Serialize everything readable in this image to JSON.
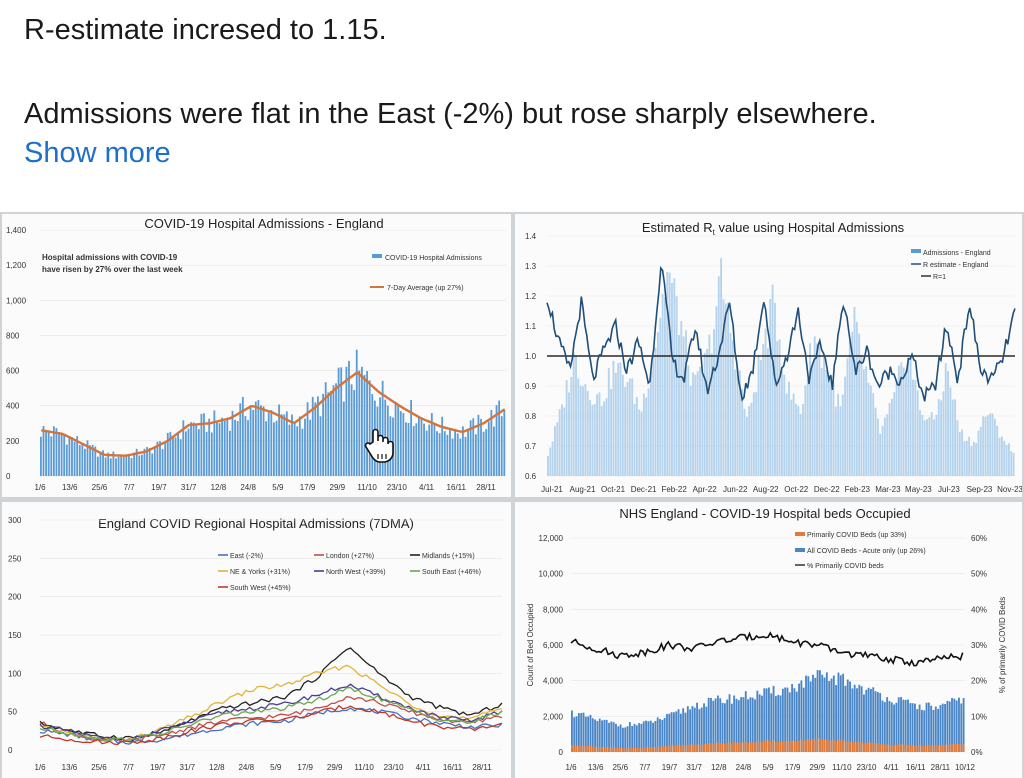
{
  "post": {
    "headline": "R-estimate incresed to 1.15.",
    "body": "Admissions were flat in the East (-2%) but rose sharply elsewhere.",
    "show_more": "Show more"
  },
  "colors": {
    "bars": "#5b9bd5",
    "avg_line": "#d4743a",
    "r_line": "#1f4e79",
    "r1_line": "#000000",
    "east": "#4472c4",
    "london": "#c0504d",
    "midlands": "#222222",
    "ne_yorks": "#e2b33c",
    "north_west": "#4b3d8f",
    "south_east": "#6aa84f",
    "south_west": "#c0392b",
    "primary_beds": "#e07b39",
    "all_beds": "#4a86c6",
    "pct_line": "#111111"
  },
  "chart_data": [
    {
      "type": "bar",
      "title": "COVID-19 Hospital Admissions - England",
      "annotation": [
        "Hospital admissions with COVID-19",
        "have risen by 27% over the last week"
      ],
      "legend": [
        "COVID-19 Hospital Admissions",
        "7-Day Average (up 27%)"
      ],
      "y_ticks": [
        "0",
        "200",
        "400",
        "600",
        "800",
        "1,000",
        "1,200",
        "1,400"
      ],
      "ylim": [
        0,
        1400
      ],
      "x_ticks": [
        "1/6",
        "13/6",
        "25/6",
        "7/7",
        "19/7",
        "31/7",
        "12/8",
        "24/8",
        "5/9",
        "17/9",
        "29/9",
        "11/10",
        "23/10",
        "4/11",
        "16/11",
        "28/11"
      ],
      "avg_knots": [
        260,
        240,
        180,
        120,
        115,
        140,
        200,
        290,
        300,
        330,
        400,
        360,
        300,
        390,
        500,
        590,
        480,
        400,
        330,
        280,
        250,
        300,
        380
      ],
      "grid": true
    },
    {
      "type": "line",
      "title": "Estimated R",
      "title_sub": "t",
      "title_suffix": " value using Hospital Admissions",
      "legend": [
        "Admissions - England",
        "R estimate - England",
        "R=1"
      ],
      "y_ticks": [
        "0.6",
        "0.7",
        "0.8",
        "0.9",
        "1.0",
        "1.1",
        "1.2",
        "1.3",
        "1.4"
      ],
      "ylim": [
        0.6,
        1.4
      ],
      "x_ticks": [
        "Jul-21",
        "Aug-21",
        "Oct-21",
        "Dec-21",
        "Feb-22",
        "Apr-22",
        "Jun-22",
        "Aug-22",
        "Oct-22",
        "Dec-22",
        "Feb-23",
        "Mar-23",
        "May-23",
        "Jul-23",
        "Sep-23",
        "Nov-23"
      ],
      "r_knots": [
        1.2,
        1.05,
        0.95,
        1.18,
        0.92,
        1.02,
        1.1,
        0.95,
        1.05,
        0.9,
        1.32,
        0.98,
        0.92,
        1.1,
        0.88,
        1.0,
        1.18,
        0.86,
        0.95,
        1.2,
        0.9,
        1.0,
        1.15,
        0.92,
        1.04,
        0.9,
        1.2,
        0.94,
        1.02,
        0.9,
        0.95,
        0.92,
        1.0,
        0.86,
        0.9,
        1.1,
        0.92,
        1.18,
        0.95,
        0.92,
        1.0,
        1.15
      ],
      "adm_knots": [
        0.1,
        0.3,
        0.55,
        0.4,
        0.35,
        0.5,
        0.45,
        0.3,
        0.6,
        0.95,
        0.7,
        0.4,
        0.55,
        0.9,
        0.6,
        0.25,
        0.55,
        0.8,
        0.4,
        0.3,
        0.65,
        0.5,
        0.3,
        0.7,
        0.45,
        0.2,
        0.35,
        0.6,
        0.3,
        0.25,
        0.5,
        0.2,
        0.15,
        0.3,
        0.2,
        0.1
      ],
      "ref": 1.0
    },
    {
      "type": "line",
      "title": "England COVID Regional Hospital Admissions (7DMA)",
      "y_ticks": [
        "0",
        "50",
        "100",
        "150",
        "200",
        "250",
        "300"
      ],
      "ylim": [
        0,
        300
      ],
      "x_ticks": [
        "1/6",
        "13/6",
        "25/6",
        "7/7",
        "19/7",
        "31/7",
        "12/8",
        "24/8",
        "5/9",
        "17/9",
        "29/9",
        "11/10",
        "23/10",
        "4/11",
        "16/11",
        "28/11"
      ],
      "series": [
        {
          "name": "East (-2%)",
          "values": [
            25,
            20,
            12,
            10,
            14,
            22,
            30,
            35,
            38,
            48,
            55,
            50,
            42,
            35,
            30,
            32
          ]
        },
        {
          "name": "London (+27%)",
          "values": [
            35,
            22,
            12,
            12,
            20,
            30,
            38,
            42,
            45,
            55,
            70,
            62,
            50,
            40,
            35,
            45
          ]
        },
        {
          "name": "Midlands (+15%)",
          "values": [
            35,
            25,
            18,
            16,
            24,
            40,
            55,
            62,
            70,
            95,
            135,
            100,
            70,
            55,
            45,
            60
          ]
        },
        {
          "name": "NE & Yorks (+31%)",
          "values": [
            30,
            22,
            14,
            14,
            28,
            45,
            65,
            80,
            85,
            100,
            110,
            85,
            60,
            45,
            40,
            55
          ]
        },
        {
          "name": "North West (+39%)",
          "values": [
            32,
            24,
            15,
            14,
            26,
            38,
            50,
            55,
            60,
            72,
            85,
            70,
            55,
            42,
            38,
            50
          ]
        },
        {
          "name": "South East (+46%)",
          "values": [
            28,
            22,
            14,
            14,
            22,
            35,
            46,
            50,
            55,
            65,
            80,
            68,
            52,
            40,
            36,
            50
          ]
        },
        {
          "name": "South West (+45%)",
          "values": [
            18,
            14,
            10,
            10,
            16,
            26,
            34,
            38,
            40,
            48,
            58,
            50,
            38,
            30,
            26,
            34
          ]
        }
      ]
    },
    {
      "type": "bar",
      "title": "NHS England - COVID-19 Hospital beds Occupied",
      "legend": [
        "Primarily COVID Beds (up 33%)",
        "All COVID Beds - Acute only (up 26%)",
        "% Primarily COVID beds"
      ],
      "ylabel": "Count of Bed Occupied",
      "y2label": "% of primarily COVID Beds",
      "y_ticks": [
        "0",
        "2,000",
        "4,000",
        "6,000",
        "8,000",
        "10,000",
        "12,000"
      ],
      "ylim": [
        0,
        12000
      ],
      "y2_ticks": [
        "0%",
        "10%",
        "20%",
        "30%",
        "40%",
        "50%",
        "60%"
      ],
      "y2lim": [
        0,
        60
      ],
      "x_ticks": [
        "1/6",
        "13/6",
        "25/6",
        "7/7",
        "19/7",
        "31/7",
        "12/8",
        "24/8",
        "5/9",
        "17/9",
        "29/9",
        "11/10",
        "23/10",
        "4/11",
        "16/11",
        "28/11",
        "10/12"
      ],
      "all_knots": [
        2200,
        1800,
        1500,
        1600,
        2000,
        2600,
        2900,
        3100,
        3300,
        3600,
        4200,
        4100,
        3500,
        3000,
        2600,
        2500,
        3000
      ],
      "pct_knots": [
        31,
        29,
        27,
        28,
        30,
        29,
        31,
        32,
        33,
        31,
        30,
        28,
        27,
        26,
        25,
        26,
        27
      ]
    }
  ]
}
